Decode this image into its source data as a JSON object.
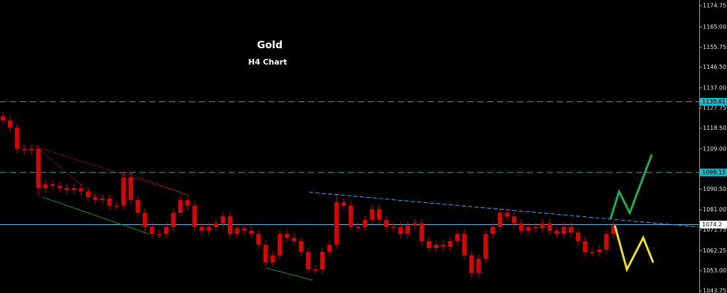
{
  "chart_data": {
    "type": "candlestick",
    "title": "Gold",
    "subtitle": "H4 Chart",
    "candle_color": "#e00000",
    "background": "#000000",
    "xlim": [
      -0.4,
      98.1
    ],
    "ylim": [
      1042.8,
      1177.35
    ],
    "yticks": [
      1174.75,
      {
        "value": 1165,
        "label": "1165.00"
      },
      1155.75,
      {
        "value": 1146.5,
        "label": "1146.50"
      },
      {
        "value": 1137,
        "label": "1137.00"
      },
      1127.75,
      {
        "value": 1118.5,
        "label": "1118.50"
      },
      {
        "value": 1109,
        "label": "1109.00"
      },
      {
        "value": 1090.5,
        "label": "1090.50"
      },
      {
        "value": 1081,
        "label": "1081.00"
      },
      1071.75,
      1062.25,
      {
        "value": 1053,
        "label": "1053.00"
      },
      1043.75
    ],
    "open": [
      1124.0,
      1122.0,
      1118.7,
      1109.0,
      1108.3,
      1109.0,
      1091.0,
      1092.7,
      1092.0,
      1091.0,
      1090.0,
      1091.0,
      1089.4,
      1086.8,
      1085.5,
      1086.2,
      1082.9,
      1082.9,
      1095.9,
      1085.5,
      1079.6,
      1073.1,
      1069.9,
      1069.9,
      1073.1,
      1079.6,
      1085.5,
      1082.9,
      1073.1,
      1071.5,
      1073.1,
      1074.8,
      1078.0,
      1069.9,
      1072.5,
      1071.5,
      1069.9,
      1065.0,
      1056.8,
      1060.1,
      1069.9,
      1068.2,
      1066.6,
      1061.7,
      1053.6,
      1053.6,
      1061.7,
      1065.0,
      1084.5,
      1082.9,
      1073.1,
      1073.1,
      1076.4,
      1081.3,
      1076.4,
      1073.1,
      1073.1,
      1069.9,
      1073.8,
      1074.8,
      1066.6,
      1063.4,
      1065.0,
      1064.0,
      1066.6,
      1069.9,
      1060.1,
      1052.0,
      1058.5,
      1069.9,
      1073.1,
      1079.6,
      1078.0,
      1074.8,
      1071.5,
      1073.1,
      1072.5,
      1074.8,
      1071.5,
      1069.9,
      1073.1,
      1070.5,
      1066.6,
      1061.7,
      1061.7,
      1062.7,
      1069.9
    ],
    "high": [
      1126.0,
      1124.0,
      1120.7,
      1111.0,
      1111.0,
      1111.0,
      1094.7,
      1094.7,
      1094.0,
      1093.0,
      1093.0,
      1093.0,
      1091.4,
      1088.8,
      1088.2,
      1088.2,
      1084.9,
      1097.9,
      1097.9,
      1087.5,
      1081.6,
      1075.1,
      1071.9,
      1075.1,
      1081.6,
      1087.5,
      1087.5,
      1084.9,
      1075.1,
      1075.1,
      1076.8,
      1080.0,
      1080.0,
      1074.5,
      1074.5,
      1073.5,
      1071.9,
      1067.0,
      1062.1,
      1071.9,
      1071.9,
      1070.2,
      1068.6,
      1063.7,
      1055.6,
      1063.7,
      1067.0,
      1088.5,
      1086.5,
      1084.9,
      1075.1,
      1078.4,
      1083.3,
      1083.3,
      1078.4,
      1075.1,
      1075.1,
      1075.8,
      1076.8,
      1076.8,
      1068.6,
      1067.0,
      1067.0,
      1068.6,
      1071.9,
      1071.9,
      1062.1,
      1060.5,
      1071.9,
      1075.1,
      1081.6,
      1081.6,
      1080.0,
      1076.8,
      1075.1,
      1075.1,
      1076.8,
      1076.8,
      1073.5,
      1075.1,
      1075.1,
      1072.5,
      1068.6,
      1063.7,
      1064.7,
      1071.9,
      1075.8
    ],
    "low": [
      1120.0,
      1116.7,
      1107.0,
      1106.3,
      1106.3,
      1087.0,
      1089.0,
      1090.0,
      1089.0,
      1088.0,
      1088.0,
      1087.4,
      1084.8,
      1083.5,
      1083.5,
      1080.9,
      1080.9,
      1080.9,
      1083.5,
      1077.6,
      1071.1,
      1067.9,
      1067.9,
      1067.9,
      1071.1,
      1077.6,
      1080.9,
      1071.1,
      1069.5,
      1069.5,
      1071.1,
      1072.8,
      1067.9,
      1067.9,
      1069.5,
      1067.9,
      1063.0,
      1054.8,
      1054.8,
      1058.1,
      1066.2,
      1064.6,
      1059.7,
      1051.6,
      1051.6,
      1051.6,
      1059.7,
      1063.0,
      1080.9,
      1071.1,
      1071.1,
      1071.1,
      1074.4,
      1074.4,
      1071.1,
      1071.1,
      1067.9,
      1067.9,
      1071.8,
      1064.6,
      1061.4,
      1061.4,
      1062.0,
      1062.0,
      1064.6,
      1058.1,
      1050.0,
      1050.0,
      1056.5,
      1067.9,
      1071.1,
      1076.0,
      1072.8,
      1069.5,
      1069.5,
      1070.5,
      1070.5,
      1069.5,
      1067.9,
      1067.9,
      1068.5,
      1064.6,
      1059.7,
      1059.7,
      1059.7,
      1060.7,
      1067.9
    ],
    "close": [
      1122.0,
      1118.7,
      1109.0,
      1108.3,
      1109.0,
      1091.0,
      1092.7,
      1092.0,
      1091.0,
      1090.0,
      1091.0,
      1089.4,
      1086.8,
      1085.5,
      1086.2,
      1082.9,
      1082.9,
      1095.9,
      1085.5,
      1079.6,
      1073.1,
      1069.9,
      1069.9,
      1073.1,
      1079.6,
      1085.5,
      1082.9,
      1073.1,
      1071.5,
      1073.1,
      1074.8,
      1078.0,
      1069.9,
      1072.5,
      1071.5,
      1069.9,
      1065.0,
      1056.8,
      1060.1,
      1069.9,
      1068.2,
      1066.6,
      1061.7,
      1053.6,
      1053.6,
      1061.7,
      1065.0,
      1084.5,
      1082.9,
      1073.1,
      1073.1,
      1076.4,
      1081.3,
      1076.4,
      1073.1,
      1073.1,
      1069.9,
      1073.8,
      1074.8,
      1066.6,
      1063.4,
      1065.0,
      1064.0,
      1066.6,
      1069.9,
      1060.1,
      1052.0,
      1058.5,
      1069.9,
      1073.1,
      1079.6,
      1078.0,
      1074.8,
      1071.5,
      1073.1,
      1072.5,
      1074.8,
      1071.5,
      1069.9,
      1073.1,
      1070.5,
      1066.6,
      1061.7,
      1061.7,
      1062.7,
      1069.9,
      1073.8
    ],
    "levels": [
      {
        "value": 1130.61,
        "color": "#20b2c0",
        "style": "dashed"
      },
      {
        "value": 1098.15,
        "color": "#20b2c0",
        "style": "dashed"
      },
      {
        "value": 1074.2,
        "color": "#8fc4e8",
        "style": "solid"
      }
    ],
    "lines": [
      {
        "x": [
          43.1,
          98.1
        ],
        "y": [
          1089.1,
          1073.1
        ],
        "color": "#3fa9f5",
        "style": "dashed"
      },
      {
        "x": [
          4.6,
          26.1
        ],
        "y": [
          1110.0,
          1087.8
        ],
        "color": "#c02020",
        "style": "dotted"
      },
      {
        "x": [
          4.6,
          13.6
        ],
        "y": [
          1110.0,
          1085.5
        ],
        "color": "#c02020",
        "style": "dotted"
      },
      {
        "x": [
          17.1,
          26.1
        ],
        "y": [
          1098.5,
          1087.8
        ],
        "color": "#c02020",
        "style": "dotted"
      },
      {
        "x": [
          5.6,
          20.6
        ],
        "y": [
          1086.8,
          1069.9
        ],
        "color": "#1a9a1a",
        "style": "solid"
      },
      {
        "x": [
          37.1,
          43.6
        ],
        "y": [
          1054.3,
          1048.7
        ],
        "color": "#1a9a1a",
        "style": "solid"
      },
      {
        "x": [
          85.6,
          86.8,
          88.3,
          91.4
        ],
        "y": [
          1077.0,
          1089.4,
          1079.6,
          1106.3
        ],
        "color": "#22b04a",
        "style": "bold"
      },
      {
        "x": [
          86.2,
          87.9,
          90.2,
          91.6
        ],
        "y": [
          1073.8,
          1053.6,
          1068.2,
          1056.8
        ],
        "color": "#f2e01e",
        "style": "bold"
      }
    ]
  }
}
